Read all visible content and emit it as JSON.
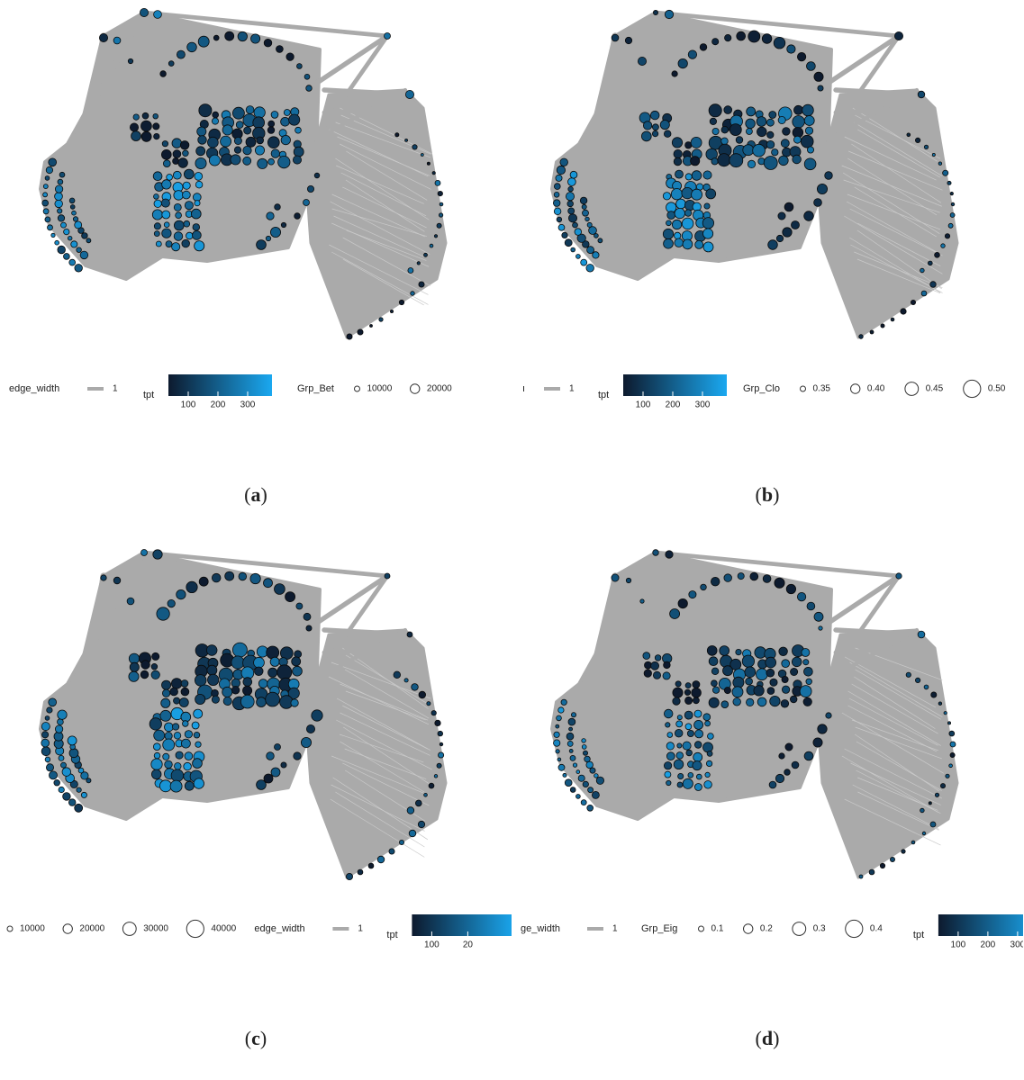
{
  "colors": {
    "edge": "#aaaaaa",
    "node_low": "#0d1a2e",
    "node_high": "#1aa8f0",
    "node_stroke": "#0a0a0a",
    "background": "#ffffff"
  },
  "panels": [
    {
      "id": "a",
      "caption_letter": "a",
      "size_title": "Grp_Bet",
      "size_ticks": [
        "10000",
        "20000"
      ],
      "size_scale": 0.85,
      "legend": {
        "edge_label": "edge_width",
        "edge_value": "1",
        "color_label": "tpt",
        "color_ticks": [
          "100",
          "200",
          "300"
        ]
      }
    },
    {
      "id": "b",
      "caption_letter": "b",
      "size_title": "Grp_Clo",
      "size_ticks": [
        "0.35",
        "0.40",
        "0.45",
        "0.50"
      ],
      "size_scale": 0.9,
      "legend": {
        "edge_label": "ı",
        "edge_value": "1",
        "color_label": "tpt",
        "color_ticks": [
          "100",
          "200",
          "300"
        ]
      }
    },
    {
      "id": "c",
      "caption_letter": "c",
      "size_title": "",
      "size_ticks": [
        "10000",
        "20000",
        "30000",
        "40000"
      ],
      "size_scale": 1.0,
      "legend": {
        "edge_label": "edge_width",
        "edge_value": "1",
        "color_label": "tpt",
        "color_ticks": [
          "100",
          "20"
        ]
      }
    },
    {
      "id": "d",
      "caption_letter": "d",
      "size_title": "Grp_Eig",
      "size_ticks": [
        "0.1",
        "0.2",
        "0.3",
        "0.4"
      ],
      "size_scale": 0.8,
      "legend": {
        "edge_label": "ge_width",
        "edge_value": "1",
        "color_label": "tpt",
        "color_ticks": [
          "100",
          "200",
          "300"
        ]
      }
    }
  ]
}
